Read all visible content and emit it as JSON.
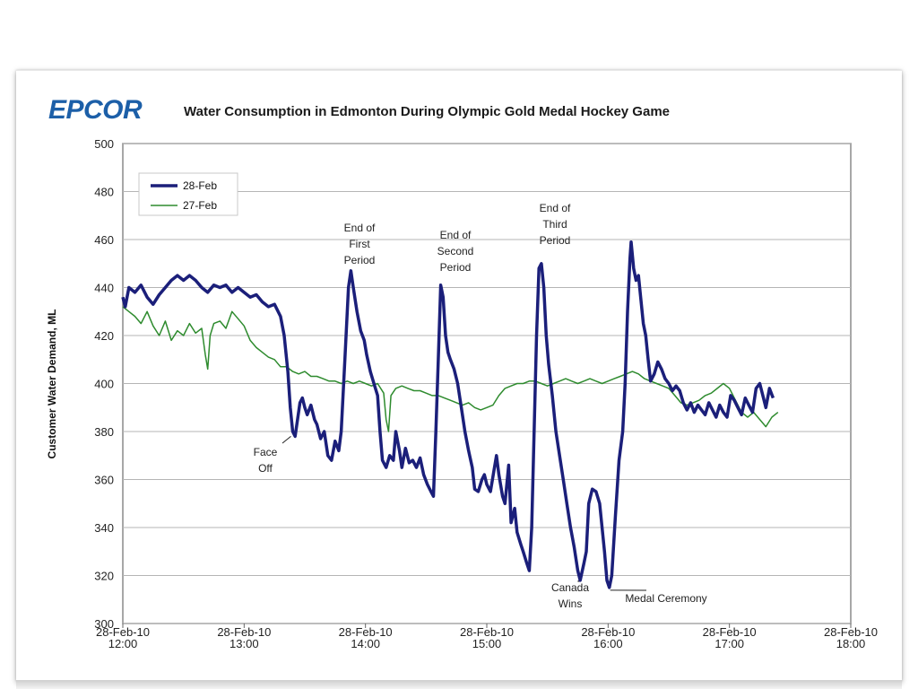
{
  "logo": {
    "text": "EPCOR"
  },
  "chart_data": {
    "type": "line",
    "title": "Water Consumption in Edmonton During Olympic Gold Medal Hockey Game",
    "xlabel": "",
    "ylabel": "Customer Water Demand, ML",
    "ylim": [
      300,
      500
    ],
    "yticks": [
      300,
      320,
      340,
      360,
      380,
      400,
      420,
      440,
      460,
      480,
      500
    ],
    "xlim": [
      12,
      18
    ],
    "xticks": [
      {
        "x": 12,
        "date": "28-Feb-10",
        "time": "12:00"
      },
      {
        "x": 13,
        "date": "28-Feb-10",
        "time": "13:00"
      },
      {
        "x": 14,
        "date": "28-Feb-10",
        "time": "14:00"
      },
      {
        "x": 15,
        "date": "28-Feb-10",
        "time": "15:00"
      },
      {
        "x": 16,
        "date": "28-Feb-10",
        "time": "16:00"
      },
      {
        "x": 17,
        "date": "28-Feb-10",
        "time": "17:00"
      },
      {
        "x": 18,
        "date": "28-Feb-10",
        "time": "18:00"
      }
    ],
    "grid": true,
    "legend": "top-left",
    "series": [
      {
        "name": "28-Feb",
        "color": "#1b1f7a",
        "points": [
          [
            12.0,
            436
          ],
          [
            12.02,
            432
          ],
          [
            12.05,
            440
          ],
          [
            12.1,
            438
          ],
          [
            12.15,
            441
          ],
          [
            12.2,
            436
          ],
          [
            12.25,
            433
          ],
          [
            12.3,
            437
          ],
          [
            12.35,
            440
          ],
          [
            12.4,
            443
          ],
          [
            12.45,
            445
          ],
          [
            12.5,
            443
          ],
          [
            12.55,
            445
          ],
          [
            12.6,
            443
          ],
          [
            12.65,
            440
          ],
          [
            12.7,
            438
          ],
          [
            12.75,
            441
          ],
          [
            12.8,
            440
          ],
          [
            12.85,
            441
          ],
          [
            12.9,
            438
          ],
          [
            12.95,
            440
          ],
          [
            13.0,
            438
          ],
          [
            13.05,
            436
          ],
          [
            13.1,
            437
          ],
          [
            13.15,
            434
          ],
          [
            13.2,
            432
          ],
          [
            13.25,
            433
          ],
          [
            13.3,
            428
          ],
          [
            13.33,
            420
          ],
          [
            13.36,
            405
          ],
          [
            13.38,
            390
          ],
          [
            13.4,
            380
          ],
          [
            13.42,
            378
          ],
          [
            13.44,
            385
          ],
          [
            13.46,
            392
          ],
          [
            13.48,
            394
          ],
          [
            13.5,
            390
          ],
          [
            13.52,
            387
          ],
          [
            13.55,
            391
          ],
          [
            13.58,
            385
          ],
          [
            13.6,
            383
          ],
          [
            13.63,
            377
          ],
          [
            13.66,
            380
          ],
          [
            13.69,
            370
          ],
          [
            13.72,
            368
          ],
          [
            13.75,
            376
          ],
          [
            13.78,
            372
          ],
          [
            13.8,
            380
          ],
          [
            13.83,
            410
          ],
          [
            13.86,
            440
          ],
          [
            13.88,
            447
          ],
          [
            13.9,
            440
          ],
          [
            13.93,
            430
          ],
          [
            13.96,
            422
          ],
          [
            13.99,
            418
          ],
          [
            14.01,
            412
          ],
          [
            14.04,
            405
          ],
          [
            14.07,
            400
          ],
          [
            14.1,
            395
          ],
          [
            14.12,
            380
          ],
          [
            14.14,
            368
          ],
          [
            14.17,
            365
          ],
          [
            14.2,
            370
          ],
          [
            14.23,
            368
          ],
          [
            14.25,
            380
          ],
          [
            14.28,
            372
          ],
          [
            14.3,
            365
          ],
          [
            14.33,
            373
          ],
          [
            14.36,
            367
          ],
          [
            14.39,
            368
          ],
          [
            14.42,
            365
          ],
          [
            14.45,
            369
          ],
          [
            14.48,
            362
          ],
          [
            14.51,
            358
          ],
          [
            14.54,
            355
          ],
          [
            14.56,
            353
          ],
          [
            14.58,
            380
          ],
          [
            14.6,
            410
          ],
          [
            14.62,
            441
          ],
          [
            14.64,
            436
          ],
          [
            14.66,
            420
          ],
          [
            14.68,
            413
          ],
          [
            14.7,
            410
          ],
          [
            14.73,
            406
          ],
          [
            14.76,
            400
          ],
          [
            14.79,
            390
          ],
          [
            14.82,
            380
          ],
          [
            14.85,
            372
          ],
          [
            14.88,
            365
          ],
          [
            14.9,
            356
          ],
          [
            14.93,
            355
          ],
          [
            14.96,
            360
          ],
          [
            14.98,
            362
          ],
          [
            15.0,
            358
          ],
          [
            15.03,
            355
          ],
          [
            15.06,
            364
          ],
          [
            15.08,
            370
          ],
          [
            15.1,
            362
          ],
          [
            15.13,
            353
          ],
          [
            15.15,
            350
          ],
          [
            15.18,
            366
          ],
          [
            15.2,
            342
          ],
          [
            15.23,
            348
          ],
          [
            15.25,
            338
          ],
          [
            15.28,
            333
          ],
          [
            15.3,
            330
          ],
          [
            15.33,
            325
          ],
          [
            15.35,
            322
          ],
          [
            15.37,
            340
          ],
          [
            15.39,
            380
          ],
          [
            15.41,
            420
          ],
          [
            15.43,
            448
          ],
          [
            15.45,
            450
          ],
          [
            15.47,
            440
          ],
          [
            15.49,
            420
          ],
          [
            15.51,
            408
          ],
          [
            15.54,
            395
          ],
          [
            15.57,
            380
          ],
          [
            15.6,
            370
          ],
          [
            15.63,
            360
          ],
          [
            15.66,
            350
          ],
          [
            15.69,
            340
          ],
          [
            15.72,
            332
          ],
          [
            15.75,
            322
          ],
          [
            15.77,
            318
          ],
          [
            15.8,
            325
          ],
          [
            15.82,
            330
          ],
          [
            15.84,
            350
          ],
          [
            15.87,
            356
          ],
          [
            15.9,
            355
          ],
          [
            15.93,
            350
          ],
          [
            15.95,
            340
          ],
          [
            15.97,
            330
          ],
          [
            15.99,
            318
          ],
          [
            16.01,
            315
          ],
          [
            16.03,
            320
          ],
          [
            16.06,
            345
          ],
          [
            16.09,
            368
          ],
          [
            16.12,
            380
          ],
          [
            16.14,
            400
          ],
          [
            16.16,
            430
          ],
          [
            16.18,
            452
          ],
          [
            16.19,
            459
          ],
          [
            16.21,
            448
          ],
          [
            16.23,
            443
          ],
          [
            16.25,
            445
          ],
          [
            16.27,
            435
          ],
          [
            16.29,
            425
          ],
          [
            16.31,
            420
          ],
          [
            16.33,
            410
          ],
          [
            16.35,
            401
          ],
          [
            16.38,
            404
          ],
          [
            16.41,
            409
          ],
          [
            16.44,
            406
          ],
          [
            16.47,
            402
          ],
          [
            16.5,
            400
          ],
          [
            16.53,
            397
          ],
          [
            16.56,
            399
          ],
          [
            16.59,
            397
          ],
          [
            16.62,
            392
          ],
          [
            16.65,
            389
          ],
          [
            16.68,
            392
          ],
          [
            16.71,
            388
          ],
          [
            16.74,
            391
          ],
          [
            16.77,
            389
          ],
          [
            16.8,
            387
          ],
          [
            16.83,
            392
          ],
          [
            16.86,
            389
          ],
          [
            16.89,
            386
          ],
          [
            16.92,
            391
          ],
          [
            16.95,
            388
          ],
          [
            16.98,
            386
          ],
          [
            17.01,
            395
          ],
          [
            17.04,
            393
          ],
          [
            17.07,
            390
          ],
          [
            17.1,
            387
          ],
          [
            17.13,
            394
          ],
          [
            17.16,
            391
          ],
          [
            17.19,
            388
          ],
          [
            17.22,
            398
          ],
          [
            17.25,
            400
          ],
          [
            17.28,
            394
          ],
          [
            17.3,
            390
          ],
          [
            17.33,
            398
          ],
          [
            17.36,
            394
          ]
        ]
      },
      {
        "name": "27-Feb",
        "color": "#2e8b2e",
        "points": [
          [
            12.0,
            432
          ],
          [
            12.05,
            430
          ],
          [
            12.1,
            428
          ],
          [
            12.15,
            425
          ],
          [
            12.2,
            430
          ],
          [
            12.25,
            424
          ],
          [
            12.3,
            420
          ],
          [
            12.35,
            426
          ],
          [
            12.4,
            418
          ],
          [
            12.45,
            422
          ],
          [
            12.5,
            420
          ],
          [
            12.55,
            425
          ],
          [
            12.6,
            421
          ],
          [
            12.65,
            423
          ],
          [
            12.68,
            412
          ],
          [
            12.7,
            406
          ],
          [
            12.72,
            420
          ],
          [
            12.75,
            425
          ],
          [
            12.8,
            426
          ],
          [
            12.85,
            423
          ],
          [
            12.9,
            430
          ],
          [
            12.95,
            427
          ],
          [
            13.0,
            424
          ],
          [
            13.05,
            418
          ],
          [
            13.1,
            415
          ],
          [
            13.15,
            413
          ],
          [
            13.2,
            411
          ],
          [
            13.25,
            410
          ],
          [
            13.3,
            407
          ],
          [
            13.35,
            407
          ],
          [
            13.4,
            405
          ],
          [
            13.45,
            404
          ],
          [
            13.5,
            405
          ],
          [
            13.55,
            403
          ],
          [
            13.6,
            403
          ],
          [
            13.65,
            402
          ],
          [
            13.7,
            401
          ],
          [
            13.75,
            401
          ],
          [
            13.8,
            400
          ],
          [
            13.85,
            401
          ],
          [
            13.9,
            400
          ],
          [
            13.95,
            401
          ],
          [
            14.0,
            400
          ],
          [
            14.05,
            399
          ],
          [
            14.1,
            400
          ],
          [
            14.15,
            396
          ],
          [
            14.17,
            385
          ],
          [
            14.19,
            380
          ],
          [
            14.21,
            395
          ],
          [
            14.25,
            398
          ],
          [
            14.3,
            399
          ],
          [
            14.35,
            398
          ],
          [
            14.4,
            397
          ],
          [
            14.45,
            397
          ],
          [
            14.5,
            396
          ],
          [
            14.55,
            395
          ],
          [
            14.6,
            395
          ],
          [
            14.65,
            394
          ],
          [
            14.7,
            393
          ],
          [
            14.75,
            392
          ],
          [
            14.8,
            391
          ],
          [
            14.85,
            392
          ],
          [
            14.9,
            390
          ],
          [
            14.95,
            389
          ],
          [
            15.0,
            390
          ],
          [
            15.05,
            391
          ],
          [
            15.1,
            395
          ],
          [
            15.15,
            398
          ],
          [
            15.2,
            399
          ],
          [
            15.25,
            400
          ],
          [
            15.3,
            400
          ],
          [
            15.35,
            401
          ],
          [
            15.4,
            401
          ],
          [
            15.45,
            400
          ],
          [
            15.5,
            399
          ],
          [
            15.55,
            400
          ],
          [
            15.6,
            401
          ],
          [
            15.65,
            402
          ],
          [
            15.7,
            401
          ],
          [
            15.75,
            400
          ],
          [
            15.8,
            401
          ],
          [
            15.85,
            402
          ],
          [
            15.9,
            401
          ],
          [
            15.95,
            400
          ],
          [
            16.0,
            401
          ],
          [
            16.05,
            402
          ],
          [
            16.1,
            403
          ],
          [
            16.15,
            404
          ],
          [
            16.2,
            405
          ],
          [
            16.25,
            404
          ],
          [
            16.3,
            402
          ],
          [
            16.35,
            401
          ],
          [
            16.4,
            400
          ],
          [
            16.45,
            399
          ],
          [
            16.5,
            398
          ],
          [
            16.55,
            395
          ],
          [
            16.6,
            392
          ],
          [
            16.65,
            391
          ],
          [
            16.7,
            392
          ],
          [
            16.75,
            393
          ],
          [
            16.8,
            395
          ],
          [
            16.85,
            396
          ],
          [
            16.9,
            398
          ],
          [
            16.95,
            400
          ],
          [
            17.0,
            398
          ],
          [
            17.05,
            393
          ],
          [
            17.1,
            388
          ],
          [
            17.15,
            386
          ],
          [
            17.2,
            388
          ],
          [
            17.25,
            385
          ],
          [
            17.3,
            382
          ],
          [
            17.35,
            386
          ],
          [
            17.4,
            388
          ]
        ]
      }
    ],
    "annotations": [
      {
        "text": [
          "Face",
          "Off"
        ],
        "x": 13.4,
        "y": 378
      },
      {
        "text": [
          "End of",
          "First",
          "Period"
        ],
        "x": 13.88,
        "y": 447
      },
      {
        "text": [
          "End of",
          "Second",
          "Period"
        ],
        "x": 14.62,
        "y": 441
      },
      {
        "text": [
          "End of",
          "Third",
          "Period"
        ],
        "x": 15.43,
        "y": 450
      },
      {
        "text": [
          "Canada",
          "Wins"
        ],
        "x": 15.77,
        "y": 318
      },
      {
        "text": [
          "Medal Ceremony"
        ],
        "x": 16.01,
        "y": 315
      }
    ]
  }
}
